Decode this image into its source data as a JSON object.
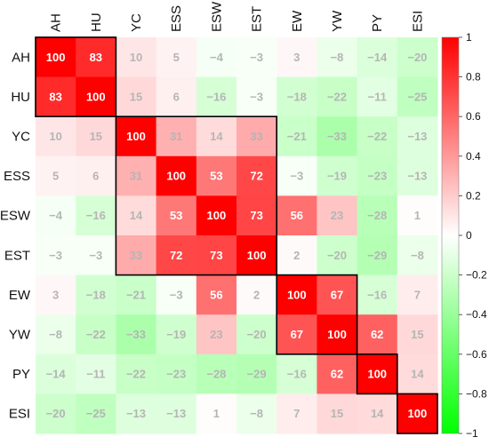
{
  "chart_data": {
    "type": "heatmap",
    "title": "",
    "xlabel": "",
    "ylabel": "",
    "rows": [
      "AH",
      "HU",
      "YC",
      "ESS",
      "ESW",
      "EST",
      "EW",
      "YW",
      "PY",
      "ESI"
    ],
    "columns": [
      "AH",
      "HU",
      "YC",
      "ESS",
      "ESW",
      "EST",
      "EW",
      "YW",
      "PY",
      "ESI"
    ],
    "values": [
      [
        100,
        83,
        10,
        5,
        -4,
        -3,
        3,
        -8,
        -14,
        -20
      ],
      [
        83,
        100,
        15,
        6,
        -16,
        -3,
        -18,
        -22,
        -11,
        -25
      ],
      [
        10,
        15,
        100,
        31,
        14,
        33,
        -21,
        -33,
        -22,
        -13
      ],
      [
        5,
        6,
        31,
        100,
        53,
        72,
        -3,
        -19,
        -23,
        -13
      ],
      [
        -4,
        -16,
        14,
        53,
        100,
        73,
        56,
        23,
        -28,
        1
      ],
      [
        -3,
        -3,
        33,
        72,
        73,
        100,
        2,
        -20,
        -29,
        -8
      ],
      [
        3,
        -18,
        -21,
        -3,
        56,
        2,
        100,
        67,
        -16,
        7
      ],
      [
        -8,
        -22,
        -33,
        -19,
        23,
        -20,
        67,
        100,
        62,
        15
      ],
      [
        -14,
        -11,
        -22,
        -23,
        -28,
        -29,
        -16,
        62,
        100,
        14
      ],
      [
        -20,
        -25,
        -13,
        -13,
        1,
        -8,
        7,
        15,
        14,
        100
      ]
    ],
    "color_scale": {
      "min": -1,
      "max": 1,
      "low_color": "#00ff00",
      "mid_color": "#ffffff",
      "high_color": "#ff0000",
      "ticks": [
        "1",
        "0.8",
        "0.6",
        "0.4",
        "0.2",
        "0",
        "−0.2",
        "−0.4",
        "−0.6",
        "−0.8",
        "−1"
      ]
    },
    "clusters": [
      [
        "AH",
        "HU"
      ],
      [
        "YC",
        "ESS",
        "ESW",
        "EST"
      ],
      [
        "EW",
        "YW"
      ],
      [
        "PY"
      ],
      [
        "ESI"
      ]
    ],
    "colors": {
      "dark_label": "#ffffff",
      "light_label": "#b5b5b5",
      "cluster_border": "#000000"
    }
  }
}
